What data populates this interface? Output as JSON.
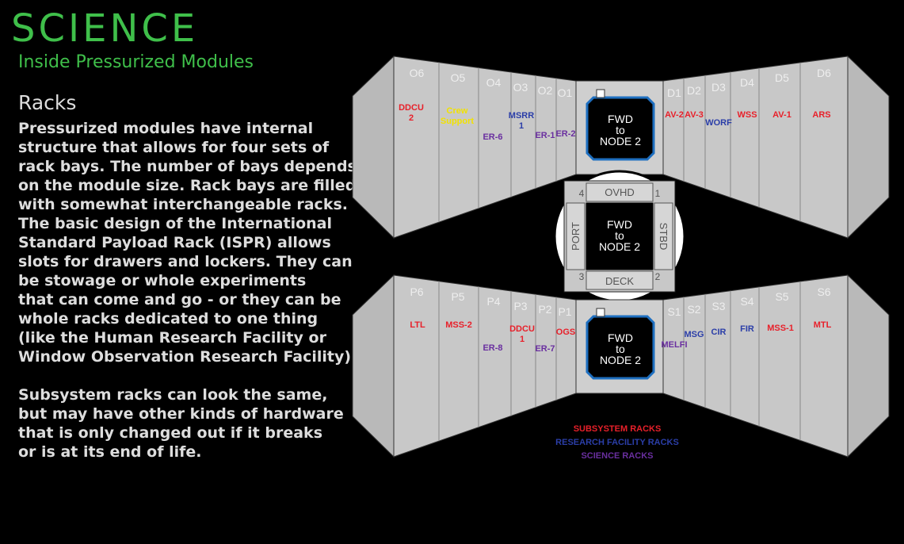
{
  "header": {
    "title": "SCIENCE",
    "subtitle": "Inside Pressurized Modules"
  },
  "content": {
    "heading": "Racks",
    "paragraph1": [
      "Pressurized modules have internal",
      "structure that allows for four sets of",
      "rack bays.  The number of bays depends",
      "on the module size.  Rack bays are filled",
      "with somewhat interchangeable racks.",
      "The basic design of the International",
      "Standard Payload Rack (ISPR) allows",
      "slots for drawers and lockers.  They can",
      "be stowage or whole experiments",
      "that can come and go - or they can be",
      "whole racks dedicated to one thing",
      "(like the Human Research Facility or",
      "Window Observation Research Facility)."
    ],
    "paragraph2": [
      "Subsystem racks can look the same,",
      "but may have other kinds of hardware",
      "that is only changed out if it breaks",
      "or is at its end of life."
    ]
  },
  "colors": {
    "title_green": "#3fbf4a",
    "subsystem": "#e8202a",
    "research_facility": "#2b3ea8",
    "science": "#6a2fa0",
    "crew_support": "#f2e200",
    "panel": "#c8c8c8",
    "hatch_border": "#1e6fc0"
  },
  "top_diagram": {
    "left_slots": [
      "O6",
      "O5",
      "O4",
      "O3",
      "O2",
      "O1"
    ],
    "right_slots": [
      "D1",
      "D2",
      "D3",
      "D4",
      "D5",
      "D6"
    ],
    "hatch": [
      "FWD",
      "to",
      "NODE 2"
    ],
    "racks": [
      {
        "text": [
          "DDCU",
          "2"
        ],
        "kind": "subsystem"
      },
      {
        "text": [
          "Crew",
          "Support"
        ],
        "kind": "crew"
      },
      {
        "text": [
          "ER-6"
        ],
        "kind": "science"
      },
      {
        "text": [
          "MSRR",
          "1"
        ],
        "kind": "research"
      },
      {
        "text": [
          "ER-1"
        ],
        "kind": "science"
      },
      {
        "text": [
          "ER-2"
        ],
        "kind": "science"
      },
      {
        "text": [
          "AV-2"
        ],
        "kind": "subsystem"
      },
      {
        "text": [
          "AV-3"
        ],
        "kind": "subsystem"
      },
      {
        "text": [
          "WORF"
        ],
        "kind": "research"
      },
      {
        "text": [
          "WSS"
        ],
        "kind": "subsystem"
      },
      {
        "text": [
          "AV-1"
        ],
        "kind": "subsystem"
      },
      {
        "text": [
          "ARS"
        ],
        "kind": "subsystem"
      }
    ]
  },
  "cross_section": {
    "top": "OVHD",
    "bottom": "DECK",
    "left": "PORT",
    "right": "STBD",
    "corners": [
      "4",
      "1",
      "3",
      "2"
    ],
    "hatch": [
      "FWD",
      "to",
      "NODE 2"
    ]
  },
  "bottom_diagram": {
    "left_slots": [
      "P6",
      "P5",
      "P4",
      "P3",
      "P2",
      "P1"
    ],
    "right_slots": [
      "S1",
      "S2",
      "S3",
      "S4",
      "S5",
      "S6"
    ],
    "hatch": [
      "FWD",
      "to",
      "NODE 2"
    ],
    "racks": [
      {
        "text": [
          "LTL"
        ],
        "kind": "subsystem"
      },
      {
        "text": [
          "MSS-2"
        ],
        "kind": "subsystem"
      },
      {
        "text": [
          "ER-8"
        ],
        "kind": "science"
      },
      {
        "text": [
          "DDCU",
          "1"
        ],
        "kind": "subsystem"
      },
      {
        "text": [
          "ER-7"
        ],
        "kind": "science"
      },
      {
        "text": [
          "OGS"
        ],
        "kind": "subsystem"
      },
      {
        "text": [
          "MELFI"
        ],
        "kind": "science"
      },
      {
        "text": [
          "MSG"
        ],
        "kind": "research"
      },
      {
        "text": [
          "CIR"
        ],
        "kind": "research"
      },
      {
        "text": [
          "FIR"
        ],
        "kind": "research"
      },
      {
        "text": [
          "MSS-1"
        ],
        "kind": "subsystem"
      },
      {
        "text": [
          "MTL"
        ],
        "kind": "subsystem"
      }
    ]
  },
  "legend": [
    {
      "label": "SUBSYSTEM RACKS",
      "kind": "subsystem"
    },
    {
      "label": "RESEARCH FACILITY RACKS",
      "kind": "research"
    },
    {
      "label": "SCIENCE RACKS",
      "kind": "science"
    }
  ]
}
